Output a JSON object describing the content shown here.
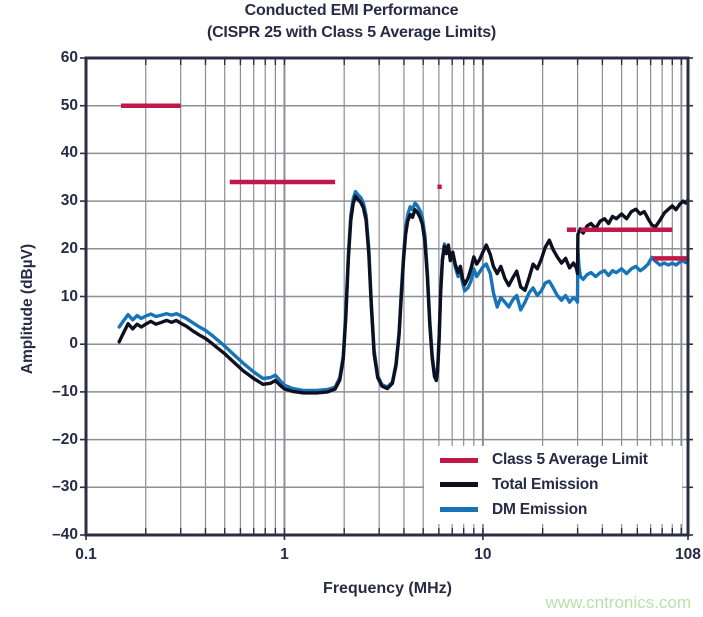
{
  "header": {
    "title": "Conducted EMI Performance",
    "subtitle": "(CISPR 25 with Class 5 Average Limits)"
  },
  "watermark": "www.cntronics.com",
  "colors": {
    "axis_text": "#272b45",
    "frame": "#2a2d45",
    "grid": "#8e8e98",
    "limit_red": "#c01848",
    "total_black": "#0e1020",
    "dm_blue": "#1874b8",
    "watermark_green": "#b7e3ab",
    "background": "#ffffff"
  },
  "chart_data": {
    "type": "line",
    "title": "Conducted EMI Performance",
    "subtitle": "(CISPR 25 with Class 5 Average Limits)",
    "xlabel": "Frequency (MHz)",
    "ylabel": "Amplitude (dBµV)",
    "x_scale": "log",
    "xlim": [
      0.1,
      108
    ],
    "ylim": [
      -40,
      60
    ],
    "grid": true,
    "legend_position": "inside-lower-right",
    "x_ticks": [
      {
        "value": 0.1,
        "label": "0.1"
      },
      {
        "value": 1,
        "label": "1"
      },
      {
        "value": 10,
        "label": "10"
      },
      {
        "value": 108,
        "label": "108"
      }
    ],
    "y_ticks": [
      {
        "value": 60,
        "label": "60"
      },
      {
        "value": 50,
        "label": "50"
      },
      {
        "value": 40,
        "label": "40"
      },
      {
        "value": 30,
        "label": "30"
      },
      {
        "value": 20,
        "label": "20"
      },
      {
        "value": 10,
        "label": "10"
      },
      {
        "value": 0,
        "label": "0"
      },
      {
        "value": -10,
        "label": "–10"
      },
      {
        "value": -20,
        "label": "–20"
      },
      {
        "value": -30,
        "label": "–30"
      },
      {
        "value": -40,
        "label": "–40"
      }
    ],
    "legend": [
      "Class 5 Average Limit",
      "Total Emission",
      "DM Emission"
    ],
    "limit_series": {
      "name": "Class 5 Average Limit",
      "color": "#c01848",
      "segments": [
        {
          "f1": 0.15,
          "f2": 0.3,
          "level": 50
        },
        {
          "f1": 0.53,
          "f2": 1.8,
          "level": 34
        },
        {
          "f1": 5.9,
          "f2": 6.2,
          "level": 33
        },
        {
          "f1": 26.5,
          "f2": 29.5,
          "level": 24
        },
        {
          "f1": 31,
          "f2": 90,
          "level": 24
        },
        {
          "f1": 72,
          "f2": 108,
          "level": 18
        }
      ]
    },
    "series": [
      {
        "name": "Total Emission",
        "color": "#0e1020",
        "points": [
          [
            0.147,
            0.5
          ],
          [
            0.155,
            2.5
          ],
          [
            0.163,
            4.3
          ],
          [
            0.172,
            3.2
          ],
          [
            0.181,
            4.2
          ],
          [
            0.19,
            3.6
          ],
          [
            0.2,
            4.2
          ],
          [
            0.212,
            4.8
          ],
          [
            0.225,
            4.2
          ],
          [
            0.24,
            4.6
          ],
          [
            0.255,
            5.0
          ],
          [
            0.27,
            4.6
          ],
          [
            0.285,
            5.0
          ],
          [
            0.3,
            4.4
          ],
          [
            0.32,
            3.8
          ],
          [
            0.345,
            2.8
          ],
          [
            0.37,
            2.0
          ],
          [
            0.4,
            1.2
          ],
          [
            0.43,
            0.2
          ],
          [
            0.46,
            -0.8
          ],
          [
            0.5,
            -2.0
          ],
          [
            0.55,
            -3.6
          ],
          [
            0.62,
            -5.6
          ],
          [
            0.7,
            -7.2
          ],
          [
            0.78,
            -8.4
          ],
          [
            0.85,
            -8.2
          ],
          [
            0.9,
            -7.6
          ],
          [
            0.95,
            -8.6
          ],
          [
            1.0,
            -9.4
          ],
          [
            1.1,
            -9.9
          ],
          [
            1.25,
            -10.2
          ],
          [
            1.45,
            -10.2
          ],
          [
            1.65,
            -10.0
          ],
          [
            1.8,
            -9.4
          ],
          [
            1.9,
            -7.5
          ],
          [
            1.98,
            -3.0
          ],
          [
            2.04,
            6.0
          ],
          [
            2.1,
            18.0
          ],
          [
            2.16,
            26.0
          ],
          [
            2.22,
            29.5
          ],
          [
            2.28,
            31.0
          ],
          [
            2.35,
            30.3
          ],
          [
            2.42,
            29.8
          ],
          [
            2.5,
            28.6
          ],
          [
            2.58,
            26.0
          ],
          [
            2.66,
            19.0
          ],
          [
            2.74,
            8.0
          ],
          [
            2.83,
            -2.0
          ],
          [
            2.95,
            -7.0
          ],
          [
            3.1,
            -8.8
          ],
          [
            3.3,
            -9.3
          ],
          [
            3.5,
            -8.2
          ],
          [
            3.65,
            -4.5
          ],
          [
            3.78,
            2.0
          ],
          [
            3.88,
            10.0
          ],
          [
            3.98,
            17.5
          ],
          [
            4.08,
            23.0
          ],
          [
            4.18,
            25.8
          ],
          [
            4.3,
            27.2
          ],
          [
            4.42,
            26.6
          ],
          [
            4.55,
            28.2
          ],
          [
            4.68,
            27.6
          ],
          [
            4.82,
            26.6
          ],
          [
            4.95,
            25.2
          ],
          [
            5.1,
            21.5
          ],
          [
            5.25,
            14.0
          ],
          [
            5.4,
            4.0
          ],
          [
            5.55,
            -3.0
          ],
          [
            5.7,
            -6.8
          ],
          [
            5.82,
            -7.6
          ],
          [
            5.92,
            -5.5
          ],
          [
            6.02,
            1.5
          ],
          [
            6.12,
            10.5
          ],
          [
            6.25,
            17.5
          ],
          [
            6.4,
            20.5
          ],
          [
            6.55,
            19.0
          ],
          [
            6.7,
            20.8
          ],
          [
            6.85,
            17.5
          ],
          [
            7.05,
            19.3
          ],
          [
            7.25,
            16.8
          ],
          [
            7.5,
            15.0
          ],
          [
            7.7,
            16.3
          ],
          [
            7.9,
            13.8
          ],
          [
            8.1,
            12.5
          ],
          [
            8.4,
            13.8
          ],
          [
            8.7,
            15.8
          ],
          [
            9.0,
            18.3
          ],
          [
            9.3,
            16.8
          ],
          [
            9.65,
            17.8
          ],
          [
            10.0,
            19.3
          ],
          [
            10.4,
            20.8
          ],
          [
            10.9,
            18.8
          ],
          [
            11.3,
            16.3
          ],
          [
            11.8,
            14.8
          ],
          [
            12.3,
            16.3
          ],
          [
            12.9,
            13.8
          ],
          [
            13.5,
            12.3
          ],
          [
            14.1,
            13.8
          ],
          [
            14.8,
            15.3
          ],
          [
            15.5,
            12.0
          ],
          [
            16.3,
            11.3
          ],
          [
            17.1,
            14.0
          ],
          [
            17.9,
            16.8
          ],
          [
            18.8,
            15.8
          ],
          [
            19.7,
            17.8
          ],
          [
            20.6,
            20.3
          ],
          [
            21.6,
            21.8
          ],
          [
            22.6,
            19.8
          ],
          [
            23.7,
            18.3
          ],
          [
            24.9,
            17.0
          ],
          [
            26.1,
            18.0
          ],
          [
            27.3,
            16.0
          ],
          [
            28.6,
            17.0
          ],
          [
            29.6,
            16.0
          ],
          [
            29.95,
            14.8
          ],
          [
            30.1,
            23.0
          ],
          [
            31,
            24.2
          ],
          [
            32,
            23.3
          ],
          [
            33.5,
            24.8
          ],
          [
            35,
            25.3
          ],
          [
            37,
            24.3
          ],
          [
            39,
            25.8
          ],
          [
            41,
            26.3
          ],
          [
            43,
            25.3
          ],
          [
            45,
            26.8
          ],
          [
            47,
            26.3
          ],
          [
            50,
            27.3
          ],
          [
            53,
            26.3
          ],
          [
            56,
            27.8
          ],
          [
            59,
            28.3
          ],
          [
            62,
            27.3
          ],
          [
            65,
            27.8
          ],
          [
            68,
            26.3
          ],
          [
            71,
            25.0
          ],
          [
            74,
            24.6
          ],
          [
            78,
            26.0
          ],
          [
            82,
            27.5
          ],
          [
            86,
            28.3
          ],
          [
            90,
            29.0
          ],
          [
            94,
            28.2
          ],
          [
            98,
            29.3
          ],
          [
            102,
            30.0
          ],
          [
            105,
            29.6
          ],
          [
            108,
            30.3
          ]
        ]
      },
      {
        "name": "DM Emission",
        "color": "#1874b8",
        "points": [
          [
            0.147,
            3.6
          ],
          [
            0.155,
            5.0
          ],
          [
            0.163,
            6.2
          ],
          [
            0.172,
            5.1
          ],
          [
            0.181,
            6.0
          ],
          [
            0.19,
            5.4
          ],
          [
            0.2,
            5.9
          ],
          [
            0.212,
            6.3
          ],
          [
            0.225,
            5.8
          ],
          [
            0.24,
            6.1
          ],
          [
            0.255,
            6.4
          ],
          [
            0.27,
            6.1
          ],
          [
            0.285,
            6.4
          ],
          [
            0.3,
            6.0
          ],
          [
            0.32,
            5.4
          ],
          [
            0.345,
            4.5
          ],
          [
            0.37,
            3.7
          ],
          [
            0.4,
            2.9
          ],
          [
            0.43,
            1.9
          ],
          [
            0.46,
            0.9
          ],
          [
            0.5,
            -0.4
          ],
          [
            0.55,
            -2.0
          ],
          [
            0.62,
            -4.0
          ],
          [
            0.7,
            -5.8
          ],
          [
            0.78,
            -7.2
          ],
          [
            0.85,
            -7.0
          ],
          [
            0.9,
            -6.5
          ],
          [
            0.95,
            -7.6
          ],
          [
            1.0,
            -8.6
          ],
          [
            1.1,
            -9.3
          ],
          [
            1.25,
            -9.7
          ],
          [
            1.45,
            -9.7
          ],
          [
            1.65,
            -9.5
          ],
          [
            1.8,
            -9.0
          ],
          [
            1.9,
            -7.0
          ],
          [
            1.98,
            -2.4
          ],
          [
            2.04,
            7.0
          ],
          [
            2.1,
            19.0
          ],
          [
            2.16,
            27.0
          ],
          [
            2.22,
            30.5
          ],
          [
            2.28,
            32.0
          ],
          [
            2.35,
            31.3
          ],
          [
            2.42,
            30.8
          ],
          [
            2.5,
            29.6
          ],
          [
            2.58,
            27.0
          ],
          [
            2.66,
            20.0
          ],
          [
            2.74,
            8.8
          ],
          [
            2.83,
            -1.2
          ],
          [
            2.95,
            -6.6
          ],
          [
            3.1,
            -8.5
          ],
          [
            3.3,
            -9.0
          ],
          [
            3.5,
            -7.9
          ],
          [
            3.65,
            -4.0
          ],
          [
            3.78,
            2.6
          ],
          [
            3.88,
            11.0
          ],
          [
            3.98,
            18.5
          ],
          [
            4.08,
            24.2
          ],
          [
            4.18,
            27.2
          ],
          [
            4.3,
            28.8
          ],
          [
            4.42,
            28.2
          ],
          [
            4.55,
            29.6
          ],
          [
            4.68,
            29.0
          ],
          [
            4.82,
            28.0
          ],
          [
            4.95,
            26.6
          ],
          [
            5.1,
            22.8
          ],
          [
            5.25,
            15.0
          ],
          [
            5.4,
            5.0
          ],
          [
            5.55,
            -2.4
          ],
          [
            5.7,
            -6.2
          ],
          [
            5.82,
            -7.0
          ],
          [
            5.92,
            -4.8
          ],
          [
            6.02,
            2.0
          ],
          [
            6.12,
            11.0
          ],
          [
            6.25,
            18.0
          ],
          [
            6.4,
            21.0
          ],
          [
            6.55,
            19.4
          ],
          [
            6.7,
            20.4
          ],
          [
            6.85,
            17.8
          ],
          [
            7.05,
            18.8
          ],
          [
            7.25,
            16.2
          ],
          [
            7.5,
            14.2
          ],
          [
            7.7,
            15.2
          ],
          [
            7.9,
            12.8
          ],
          [
            8.1,
            11.2
          ],
          [
            8.4,
            11.8
          ],
          [
            8.7,
            13.2
          ],
          [
            9.0,
            15.8
          ],
          [
            9.3,
            14.2
          ],
          [
            9.65,
            15.2
          ],
          [
            10.0,
            16.2
          ],
          [
            10.4,
            16.8
          ],
          [
            10.9,
            14.8
          ],
          [
            11.3,
            10.8
          ],
          [
            11.8,
            7.8
          ],
          [
            12.3,
            9.8
          ],
          [
            12.9,
            8.8
          ],
          [
            13.5,
            7.8
          ],
          [
            14.1,
            9.2
          ],
          [
            14.8,
            10.2
          ],
          [
            15.5,
            7.2
          ],
          [
            16.3,
            8.8
          ],
          [
            17.1,
            10.8
          ],
          [
            17.9,
            11.8
          ],
          [
            18.8,
            10.2
          ],
          [
            19.7,
            11.2
          ],
          [
            20.6,
            12.8
          ],
          [
            21.6,
            13.2
          ],
          [
            22.6,
            11.8
          ],
          [
            23.7,
            10.2
          ],
          [
            24.9,
            9.2
          ],
          [
            26.1,
            10.2
          ],
          [
            27.3,
            8.8
          ],
          [
            28.6,
            9.8
          ],
          [
            29.6,
            9.2
          ],
          [
            29.95,
            8.8
          ],
          [
            30.1,
            19.8
          ],
          [
            30.5,
            16.2
          ],
          [
            31,
            14.2
          ],
          [
            32,
            13.6
          ],
          [
            33.5,
            14.6
          ],
          [
            35,
            15.0
          ],
          [
            37,
            14.2
          ],
          [
            39,
            15.0
          ],
          [
            41,
            15.4
          ],
          [
            43,
            14.4
          ],
          [
            45,
            15.4
          ],
          [
            47,
            15.0
          ],
          [
            50,
            15.8
          ],
          [
            53,
            14.8
          ],
          [
            56,
            15.8
          ],
          [
            59,
            16.3
          ],
          [
            62,
            15.4
          ],
          [
            65,
            16.0
          ],
          [
            68,
            16.8
          ],
          [
            71,
            18.2
          ],
          [
            74,
            17.4
          ],
          [
            78,
            16.6
          ],
          [
            82,
            17.0
          ],
          [
            86,
            16.6
          ],
          [
            90,
            17.0
          ],
          [
            94,
            16.6
          ],
          [
            98,
            17.2
          ],
          [
            102,
            17.5
          ],
          [
            105,
            17.1
          ],
          [
            108,
            17.6
          ]
        ]
      }
    ]
  }
}
